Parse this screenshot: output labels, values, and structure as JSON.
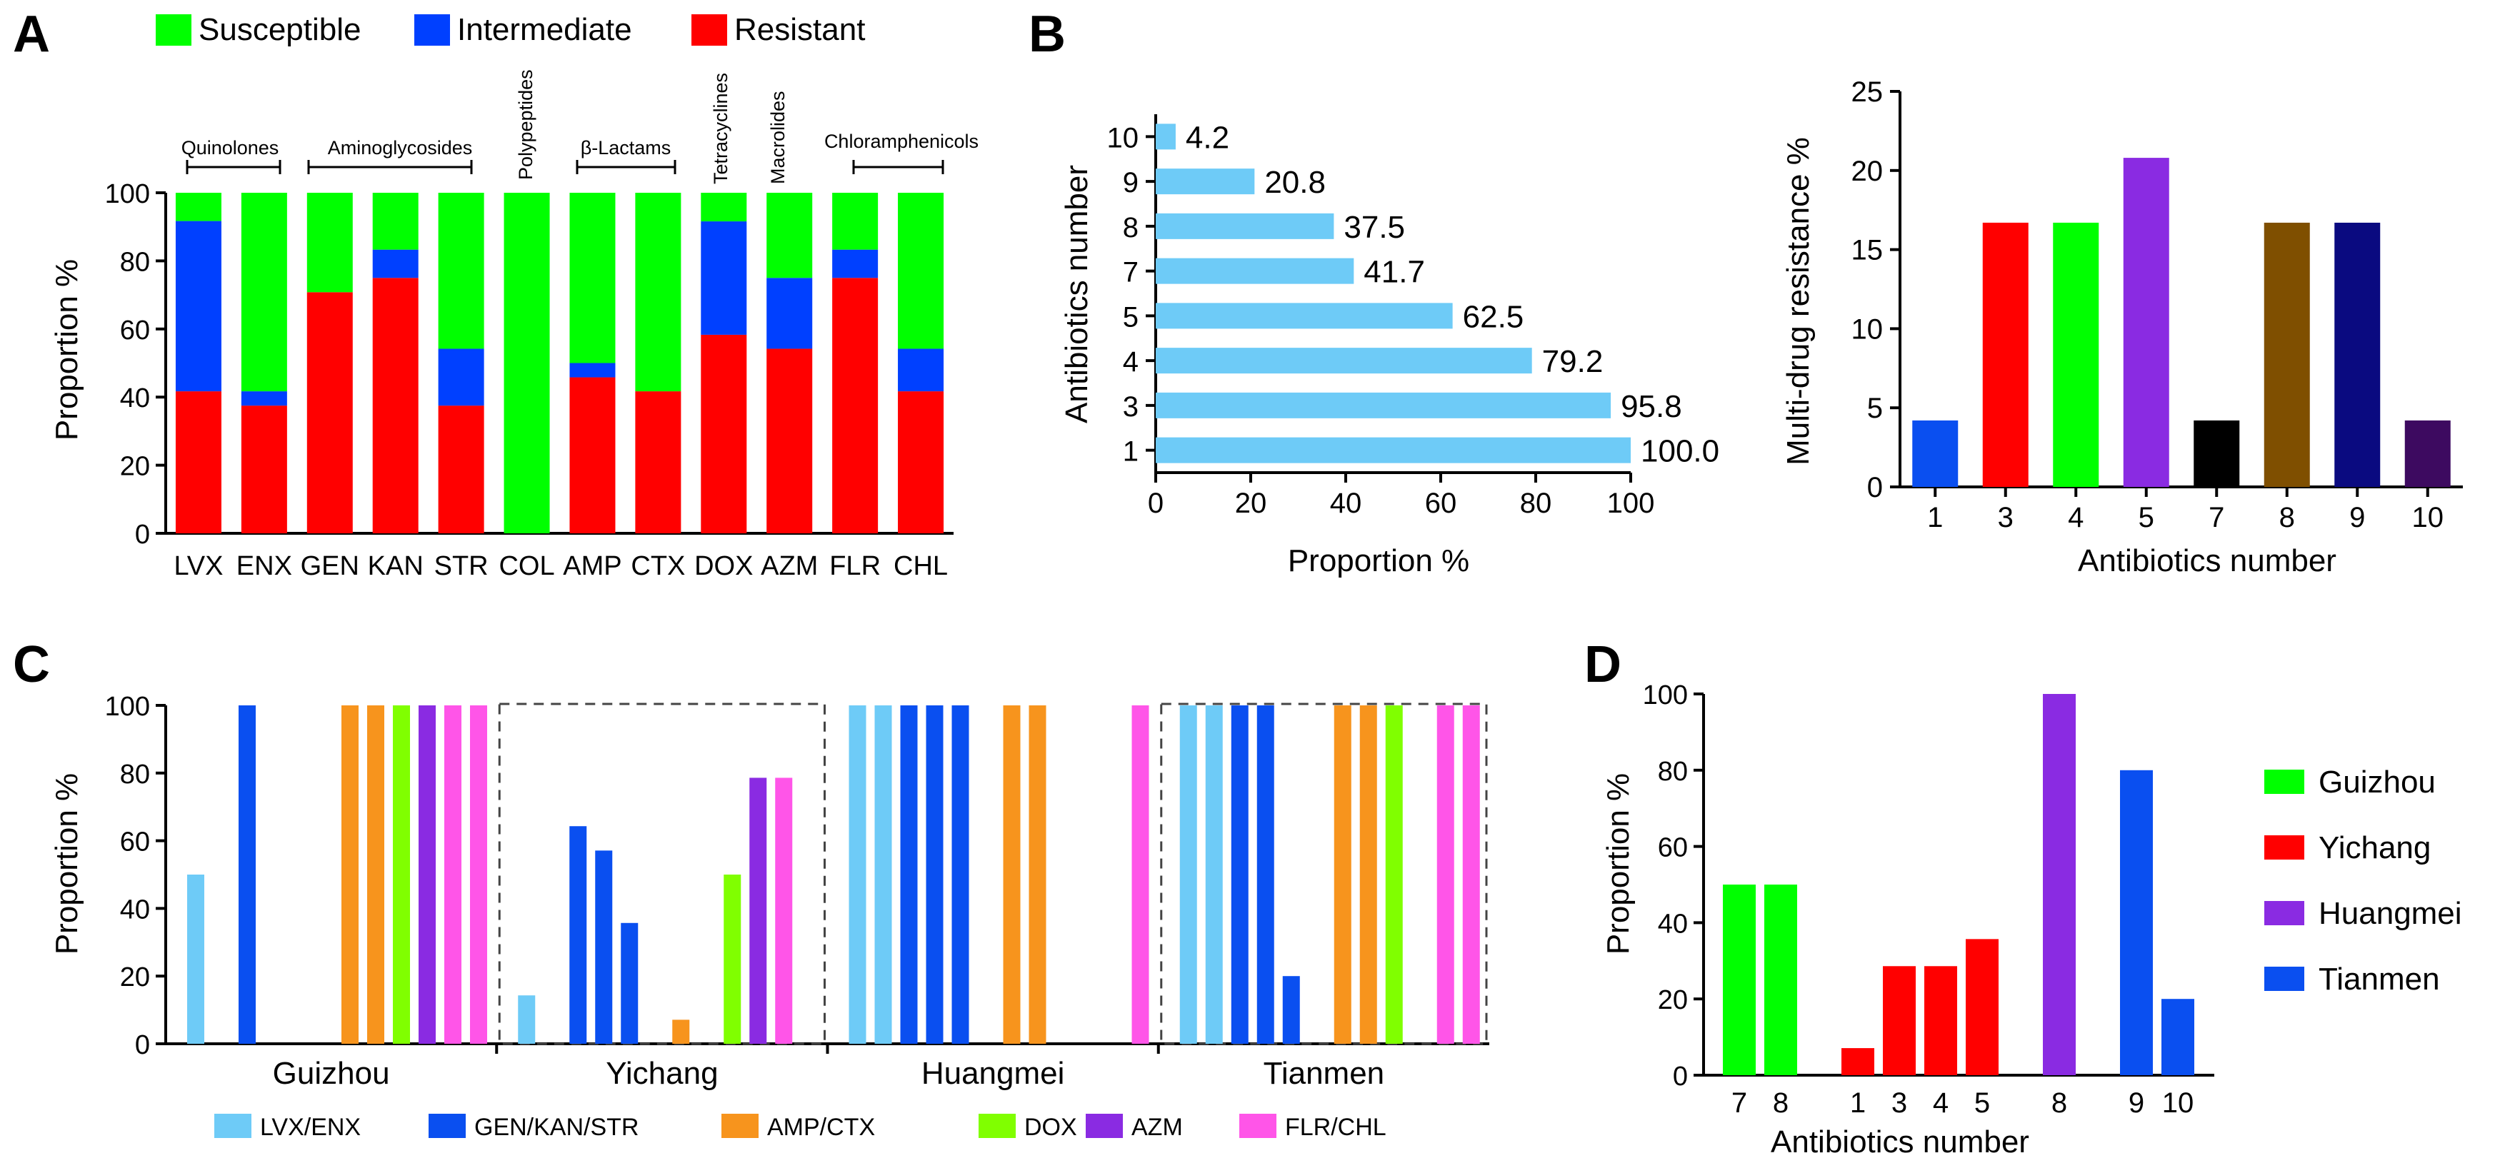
{
  "panels": {
    "A": "A",
    "B": "B",
    "C": "C",
    "D": "D"
  },
  "colors": {
    "susceptible": "#00ff00",
    "intermediate": "#0040ff",
    "resistant": "#ff0000",
    "hbar": "#6ecbf7",
    "lvx_enx": "#6ecbf7",
    "gen_kan_str": "#0a4ff0",
    "amp_ctx": "#f7941d",
    "dox": "#80ff00",
    "azm": "#8a2be2",
    "flr_chl": "#ff55e8",
    "guizhou": "#00ff00",
    "yichang": "#ff0000",
    "huangmei": "#8a2be2",
    "tianmen": "#0a4ff0"
  },
  "chart_data": [
    {
      "id": "A",
      "type": "bar",
      "stacked": true,
      "categories": [
        "LVX",
        "ENX",
        "GEN",
        "KAN",
        "STR",
        "COL",
        "AMP",
        "CTX",
        "DOX",
        "AZM",
        "FLR",
        "CHL"
      ],
      "series": [
        {
          "name": "Resistant",
          "values": [
            41.7,
            37.5,
            70.8,
            75.0,
            37.5,
            0,
            45.8,
            41.7,
            58.3,
            54.2,
            75.0,
            41.7
          ]
        },
        {
          "name": "Intermediate",
          "values": [
            50.0,
            4.2,
            0,
            8.3,
            16.7,
            0,
            4.2,
            0,
            33.3,
            20.8,
            8.3,
            12.5
          ]
        },
        {
          "name": "Susceptible",
          "values": [
            8.3,
            58.3,
            29.2,
            16.7,
            45.8,
            100,
            50.0,
            58.3,
            8.4,
            25.0,
            16.7,
            45.8
          ]
        }
      ],
      "legend": [
        "Susceptible",
        "Intermediate",
        "Resistant"
      ],
      "groups": [
        {
          "name": "Quinolones"
        },
        {
          "name": "Aminoglycosides"
        },
        {
          "name": "Polypeptides"
        },
        {
          "name": "β-Lactams"
        },
        {
          "name": "Tetracyclines"
        },
        {
          "name": "Macrolides"
        },
        {
          "name": "Chloramphenicols"
        }
      ],
      "ylabel": "Proportion  %",
      "yticks": [
        "0",
        "20",
        "40",
        "60",
        "80",
        "100"
      ],
      "ylim": [
        0,
        100
      ]
    },
    {
      "id": "B-left",
      "type": "bar",
      "orientation": "horizontal",
      "categories": [
        "1",
        "3",
        "4",
        "5",
        "7",
        "8",
        "9",
        "10"
      ],
      "values": [
        100.0,
        95.8,
        79.2,
        62.5,
        41.7,
        37.5,
        20.8,
        4.2
      ],
      "value_labels": [
        "100.0",
        "95.8",
        "79.2",
        "62.5",
        "41.7",
        "37.5",
        "20.8",
        "4.2"
      ],
      "xlabel": "Proportion  %",
      "ylabel": "Antibiotics number",
      "xticks": [
        "0",
        "20",
        "40",
        "60",
        "80",
        "100"
      ],
      "xlim": [
        0,
        100
      ]
    },
    {
      "id": "B-right",
      "type": "bar",
      "categories": [
        "1",
        "3",
        "4",
        "5",
        "7",
        "8",
        "9",
        "10"
      ],
      "values": [
        4.2,
        16.7,
        16.7,
        20.8,
        4.2,
        16.7,
        16.7,
        4.2
      ],
      "bar_colors": [
        "#0a4ff0",
        "#ff0000",
        "#00ff00",
        "#8a2be2",
        "#000000",
        "#7f4f00",
        "#0a0a80",
        "#3d0a60"
      ],
      "xlabel": "Antibiotics number",
      "ylabel": "Multi-drug resistance %",
      "yticks": [
        "0",
        "5",
        "10",
        "15",
        "20",
        "25"
      ],
      "ylim": [
        0,
        25
      ]
    },
    {
      "id": "C",
      "type": "bar",
      "regions": [
        {
          "name": "Guizhou",
          "values": [
            50,
            0,
            100,
            0,
            0,
            0,
            100,
            100,
            100,
            100,
            100,
            100
          ],
          "boxed": false
        },
        {
          "name": "Yichang",
          "values": [
            14.3,
            0,
            64.3,
            57.1,
            35.7,
            0,
            7.1,
            0,
            50,
            78.6,
            78.6,
            0
          ],
          "boxed": true
        },
        {
          "name": "Huangmei",
          "values": [
            100,
            100,
            100,
            100,
            100,
            0,
            100,
            100,
            0,
            0,
            0,
            100
          ],
          "boxed": false
        },
        {
          "name": "Tianmen",
          "values": [
            100,
            100,
            100,
            100,
            20,
            0,
            100,
            100,
            100,
            0,
            100,
            100
          ],
          "boxed": true
        }
      ],
      "bar_groups": [
        "lvx_enx",
        "lvx_enx",
        "gen_kan_str",
        "gen_kan_str",
        "gen_kan_str",
        "gap",
        "amp_ctx",
        "amp_ctx",
        "dox",
        "azm",
        "flr_chl",
        "flr_chl"
      ],
      "legend": [
        {
          "key": "lvx_enx",
          "label": "LVX/ENX"
        },
        {
          "key": "gen_kan_str",
          "label": "GEN/KAN/STR"
        },
        {
          "key": "amp_ctx",
          "label": "AMP/CTX"
        },
        {
          "key": "dox",
          "label": "DOX"
        },
        {
          "key": "azm",
          "label": "AZM"
        },
        {
          "key": "flr_chl",
          "label": "FLR/CHL"
        }
      ],
      "ylabel": "Proportion  %",
      "yticks": [
        "0",
        "20",
        "40",
        "60",
        "80",
        "100"
      ],
      "ylim": [
        0,
        100
      ]
    },
    {
      "id": "D",
      "type": "bar",
      "bars": [
        {
          "label": "7",
          "value": 50,
          "region": "Guizhou"
        },
        {
          "label": "8",
          "value": 50,
          "region": "Guizhou"
        },
        {
          "label": "1",
          "value": 7.1,
          "region": "Yichang"
        },
        {
          "label": "3",
          "value": 28.6,
          "region": "Yichang"
        },
        {
          "label": "4",
          "value": 28.6,
          "region": "Yichang"
        },
        {
          "label": "5",
          "value": 35.7,
          "region": "Yichang"
        },
        {
          "label": "8",
          "value": 100,
          "region": "Huangmei"
        },
        {
          "label": "9",
          "value": 80,
          "region": "Tianmen"
        },
        {
          "label": "10",
          "value": 20,
          "region": "Tianmen"
        }
      ],
      "legend": [
        "Guizhou",
        "Yichang",
        "Huangmei",
        "Tianmen"
      ],
      "xlabel": "Antibiotics number",
      "ylabel": "Proportion  %",
      "yticks": [
        "0",
        "20",
        "40",
        "60",
        "80",
        "100"
      ],
      "ylim": [
        0,
        100
      ]
    }
  ]
}
